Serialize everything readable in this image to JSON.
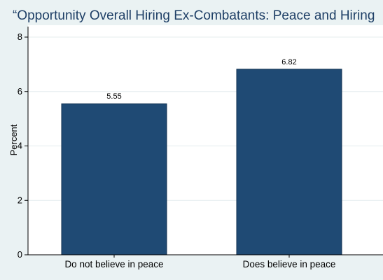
{
  "chart_data": {
    "type": "bar",
    "title": "“Opportunity Overall Hiring Ex-Combatants: Peace and Hiring",
    "xlabel": "",
    "ylabel": "Percent",
    "categories": [
      "Do not believe in peace",
      "Does believe in peace"
    ],
    "values": [
      5.55,
      6.82
    ],
    "value_labels": [
      "5.55",
      "6.82"
    ],
    "ylim": [
      0,
      8
    ],
    "yticks": [
      0,
      2,
      4,
      6,
      8
    ],
    "ytick_labels": [
      "0",
      "2",
      "4",
      "6",
      "8"
    ],
    "grid": true,
    "legend": "none",
    "bar_color": "#1f4a74",
    "background_color": "#eaf2f3",
    "plot_background_color": "#ffffff",
    "title_color": "#1e3f66"
  }
}
